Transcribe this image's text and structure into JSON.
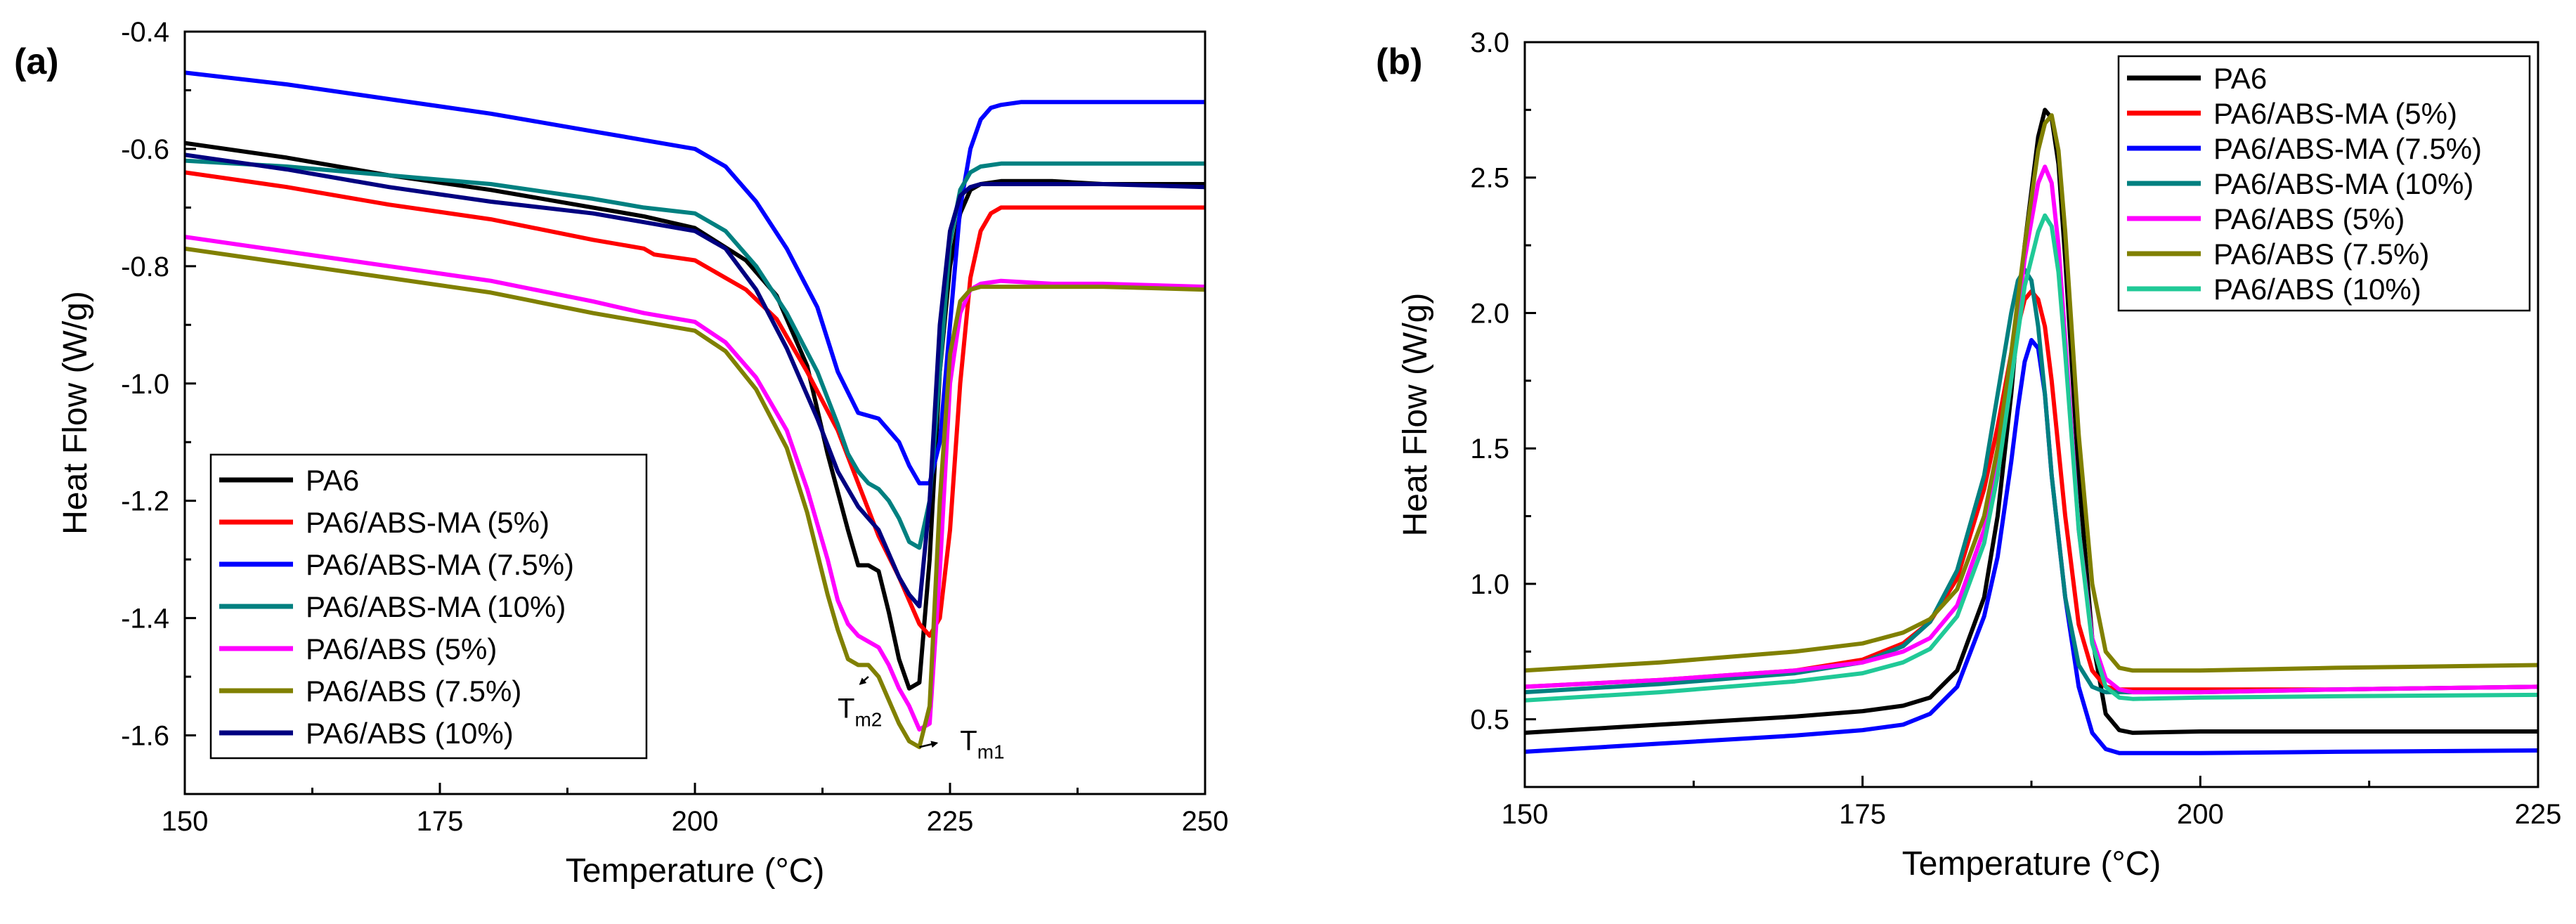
{
  "chart_data": [
    {
      "type": "line",
      "panel_label": "(a)",
      "title": "",
      "xlabel": "Temperature (°C)",
      "ylabel": "Heat Flow (W/g)",
      "xlim": [
        150,
        250
      ],
      "ylim": [
        -1.7,
        -0.4
      ],
      "xticks": [
        150,
        175,
        200,
        225,
        250
      ],
      "yticks": [
        -1.6,
        -1.4,
        -1.2,
        -1.0,
        -0.8,
        -0.6,
        -0.4
      ],
      "ytick_labels": [
        "-1.6",
        "-1.4",
        "-1.2",
        "-1.0",
        "-0.8",
        "-0.6",
        "-0.4"
      ],
      "legend_position": "bottom-left",
      "series": [
        {
          "name": "PA6",
          "color": "#000000",
          "x": [
            150,
            160,
            170,
            180,
            190,
            195,
            200,
            205,
            208,
            211,
            213,
            215,
            216,
            217,
            218,
            219,
            220,
            221,
            222,
            223,
            224,
            225,
            226,
            227,
            228,
            230,
            235,
            240,
            250
          ],
          "y": [
            -0.59,
            -0.615,
            -0.645,
            -0.67,
            -0.7,
            -0.715,
            -0.735,
            -0.79,
            -0.85,
            -0.97,
            -1.12,
            -1.25,
            -1.31,
            -1.31,
            -1.32,
            -1.39,
            -1.47,
            -1.52,
            -1.51,
            -1.3,
            -0.98,
            -0.8,
            -0.71,
            -0.67,
            -0.66,
            -0.655,
            -0.655,
            -0.66,
            -0.66
          ]
        },
        {
          "name": "PA6/ABS-MA (5%)",
          "color": "#ff0000",
          "x": [
            150,
            160,
            170,
            180,
            190,
            195,
            196,
            200,
            205,
            208,
            211,
            214,
            216,
            218,
            220,
            221,
            222,
            223,
            224,
            225,
            226,
            227,
            228,
            229,
            230,
            235,
            240,
            250
          ],
          "y": [
            -0.64,
            -0.665,
            -0.695,
            -0.72,
            -0.755,
            -0.77,
            -0.78,
            -0.79,
            -0.84,
            -0.89,
            -0.98,
            -1.08,
            -1.17,
            -1.26,
            -1.33,
            -1.37,
            -1.41,
            -1.43,
            -1.4,
            -1.25,
            -1.0,
            -0.82,
            -0.74,
            -0.71,
            -0.7,
            -0.7,
            -0.7,
            -0.7
          ]
        },
        {
          "name": "PA6/ABS-MA (7.5%)",
          "color": "#0000ff",
          "x": [
            150,
            160,
            170,
            180,
            190,
            195,
            200,
            203,
            206,
            209,
            212,
            214,
            216,
            218,
            219,
            220,
            221,
            222,
            223,
            224,
            225,
            226,
            227,
            228,
            229,
            230,
            232,
            235,
            240,
            250
          ],
          "y": [
            -0.47,
            -0.49,
            -0.515,
            -0.54,
            -0.57,
            -0.585,
            -0.6,
            -0.63,
            -0.69,
            -0.77,
            -0.87,
            -0.98,
            -1.05,
            -1.06,
            -1.08,
            -1.1,
            -1.14,
            -1.17,
            -1.17,
            -1.1,
            -0.9,
            -0.7,
            -0.6,
            -0.55,
            -0.53,
            -0.525,
            -0.52,
            -0.52,
            -0.52,
            -0.52
          ]
        },
        {
          "name": "PA6/ABS-MA (10%)",
          "color": "#008080",
          "x": [
            150,
            160,
            170,
            180,
            190,
            195,
            200,
            203,
            206,
            209,
            212,
            214,
            215,
            216,
            217,
            218,
            219,
            220,
            221,
            222,
            223,
            224,
            225,
            226,
            227,
            228,
            230,
            235,
            240,
            250
          ],
          "y": [
            -0.62,
            -0.63,
            -0.645,
            -0.66,
            -0.685,
            -0.7,
            -0.71,
            -0.74,
            -0.8,
            -0.88,
            -0.98,
            -1.07,
            -1.12,
            -1.15,
            -1.17,
            -1.18,
            -1.2,
            -1.23,
            -1.27,
            -1.28,
            -1.2,
            -0.98,
            -0.76,
            -0.67,
            -0.64,
            -0.63,
            -0.625,
            -0.625,
            -0.625,
            -0.625
          ]
        },
        {
          "name": "PA6/ABS (5%)",
          "color": "#ff00ff",
          "x": [
            150,
            160,
            170,
            180,
            190,
            195,
            200,
            203,
            206,
            209,
            211,
            213,
            214,
            215,
            216,
            217,
            218,
            219,
            220,
            221,
            222,
            223,
            224,
            225,
            226,
            227,
            228,
            230,
            235,
            240,
            250
          ],
          "y": [
            -0.75,
            -0.775,
            -0.8,
            -0.825,
            -0.86,
            -0.88,
            -0.895,
            -0.93,
            -0.99,
            -1.08,
            -1.18,
            -1.3,
            -1.37,
            -1.41,
            -1.43,
            -1.44,
            -1.45,
            -1.48,
            -1.52,
            -1.55,
            -1.59,
            -1.58,
            -1.32,
            -1.0,
            -0.88,
            -0.84,
            -0.83,
            -0.825,
            -0.83,
            -0.83,
            -0.835
          ]
        },
        {
          "name": "PA6/ABS (7.5%)",
          "color": "#808000",
          "x": [
            150,
            160,
            170,
            180,
            190,
            195,
            200,
            203,
            206,
            209,
            211,
            213,
            214,
            215,
            216,
            217,
            218,
            219,
            220,
            221,
            222,
            223,
            224,
            225,
            226,
            227,
            228,
            230,
            235,
            240,
            250
          ],
          "y": [
            -0.77,
            -0.795,
            -0.82,
            -0.845,
            -0.88,
            -0.895,
            -0.91,
            -0.945,
            -1.01,
            -1.11,
            -1.22,
            -1.36,
            -1.42,
            -1.47,
            -1.48,
            -1.48,
            -1.5,
            -1.54,
            -1.58,
            -1.61,
            -1.62,
            -1.55,
            -1.2,
            -0.95,
            -0.86,
            -0.84,
            -0.835,
            -0.835,
            -0.835,
            -0.835,
            -0.84
          ]
        },
        {
          "name": "PA6/ABS (10%)",
          "color": "#000080",
          "x": [
            150,
            160,
            170,
            180,
            190,
            195,
            200,
            203,
            206,
            209,
            212,
            214,
            216,
            217,
            218,
            219,
            220,
            221,
            222,
            223,
            224,
            225,
            226,
            227,
            228,
            230,
            235,
            240,
            250
          ],
          "y": [
            -0.61,
            -0.635,
            -0.665,
            -0.69,
            -0.71,
            -0.725,
            -0.74,
            -0.77,
            -0.84,
            -0.94,
            -1.06,
            -1.15,
            -1.21,
            -1.23,
            -1.25,
            -1.29,
            -1.33,
            -1.36,
            -1.38,
            -1.2,
            -0.9,
            -0.74,
            -0.68,
            -0.665,
            -0.66,
            -0.66,
            -0.66,
            -0.66,
            -0.665
          ]
        }
      ],
      "annotations": [
        {
          "label": "T",
          "subscript": "m2",
          "point": [
            217,
            -1.5
          ],
          "text_pos": [
            215.5,
            -1.57
          ]
        },
        {
          "label": "T",
          "subscript": "m1",
          "point": [
            222,
            -1.62
          ],
          "text_pos": [
            227.5,
            -1.625
          ]
        }
      ]
    },
    {
      "type": "line",
      "panel_label": "(b)",
      "title": "",
      "xlabel": "Temperature (°C)",
      "ylabel": "Heat Flow (W/g)",
      "xlim": [
        150,
        225
      ],
      "ylim": [
        0.25,
        3.0
      ],
      "xticks": [
        150,
        175,
        200,
        225
      ],
      "yticks": [
        0.5,
        1.0,
        1.5,
        2.0,
        2.5,
        3.0
      ],
      "ytick_labels": [
        "0.5",
        "1.0",
        "1.5",
        "2.0",
        "2.5",
        "3.0"
      ],
      "legend_position": "top-right",
      "series": [
        {
          "name": "PA6",
          "color": "#000000",
          "x": [
            150,
            160,
            170,
            175,
            178,
            180,
            182,
            184,
            185,
            186,
            187,
            188,
            188.5,
            189,
            189.5,
            190,
            190.5,
            191,
            192,
            193,
            194,
            195,
            200,
            210,
            225
          ],
          "y": [
            0.45,
            0.48,
            0.51,
            0.53,
            0.55,
            0.58,
            0.68,
            0.95,
            1.25,
            1.7,
            2.25,
            2.65,
            2.75,
            2.72,
            2.55,
            2.2,
            1.8,
            1.4,
            0.8,
            0.52,
            0.46,
            0.45,
            0.455,
            0.455,
            0.455
          ]
        },
        {
          "name": "PA6/ABS-MA (5%)",
          "color": "#ff0000",
          "x": [
            150,
            160,
            170,
            175,
            178,
            180,
            182,
            184,
            185,
            186,
            187,
            187.5,
            188,
            188.5,
            189,
            190,
            191,
            192,
            193,
            194,
            195,
            200,
            210,
            225
          ],
          "y": [
            0.62,
            0.645,
            0.68,
            0.72,
            0.78,
            0.86,
            1.02,
            1.35,
            1.58,
            1.85,
            2.05,
            2.08,
            2.05,
            1.95,
            1.75,
            1.25,
            0.85,
            0.68,
            0.62,
            0.61,
            0.61,
            0.61,
            0.61,
            0.62
          ]
        },
        {
          "name": "PA6/ABS-MA (7.5%)",
          "color": "#0000ff",
          "x": [
            150,
            160,
            170,
            175,
            178,
            180,
            182,
            184,
            185,
            186,
            186.5,
            187,
            187.5,
            188,
            188.5,
            189,
            190,
            191,
            192,
            193,
            194,
            195,
            200,
            210,
            225
          ],
          "y": [
            0.38,
            0.41,
            0.44,
            0.46,
            0.48,
            0.52,
            0.62,
            0.88,
            1.1,
            1.45,
            1.65,
            1.82,
            1.9,
            1.87,
            1.7,
            1.4,
            0.95,
            0.62,
            0.45,
            0.39,
            0.375,
            0.375,
            0.375,
            0.38,
            0.385
          ]
        },
        {
          "name": "PA6/ABS-MA (10%)",
          "color": "#008080",
          "x": [
            150,
            160,
            170,
            175,
            178,
            180,
            182,
            184,
            185,
            186,
            186.5,
            187,
            187.5,
            188,
            188.5,
            189,
            190,
            191,
            192,
            193,
            194,
            195,
            200,
            210,
            225
          ],
          "y": [
            0.6,
            0.63,
            0.67,
            0.71,
            0.77,
            0.86,
            1.05,
            1.4,
            1.7,
            2.0,
            2.12,
            2.16,
            2.12,
            1.95,
            1.7,
            1.4,
            0.95,
            0.7,
            0.62,
            0.6,
            0.6,
            0.6,
            0.6,
            0.61,
            0.62
          ]
        },
        {
          "name": "PA6/ABS (5%)",
          "color": "#ff00ff",
          "x": [
            150,
            160,
            170,
            175,
            178,
            180,
            182,
            184,
            185,
            186,
            187,
            188,
            188.5,
            189,
            189.5,
            190,
            191,
            192,
            193,
            194,
            195,
            200,
            210,
            225
          ],
          "y": [
            0.62,
            0.645,
            0.68,
            0.71,
            0.75,
            0.8,
            0.92,
            1.2,
            1.45,
            1.8,
            2.2,
            2.48,
            2.54,
            2.48,
            2.25,
            1.9,
            1.2,
            0.8,
            0.65,
            0.61,
            0.6,
            0.6,
            0.61,
            0.62
          ]
        },
        {
          "name": "PA6/ABS (7.5%)",
          "color": "#808000",
          "x": [
            150,
            160,
            170,
            175,
            178,
            180,
            182,
            184,
            185,
            186,
            187,
            188,
            188.5,
            189,
            189.5,
            190,
            191,
            192,
            193,
            194,
            195,
            200,
            210,
            225
          ],
          "y": [
            0.68,
            0.71,
            0.75,
            0.78,
            0.82,
            0.87,
            0.98,
            1.25,
            1.5,
            1.85,
            2.25,
            2.6,
            2.7,
            2.73,
            2.6,
            2.3,
            1.55,
            1.0,
            0.75,
            0.69,
            0.68,
            0.68,
            0.69,
            0.7
          ]
        },
        {
          "name": "PA6/ABS (10%)",
          "color": "#20c997",
          "x": [
            150,
            160,
            170,
            175,
            178,
            180,
            182,
            184,
            185,
            186,
            187,
            188,
            188.5,
            189,
            189.5,
            190,
            191,
            192,
            193,
            194,
            195,
            200,
            210,
            225
          ],
          "y": [
            0.57,
            0.6,
            0.64,
            0.67,
            0.71,
            0.76,
            0.88,
            1.15,
            1.4,
            1.75,
            2.1,
            2.3,
            2.36,
            2.32,
            2.15,
            1.85,
            1.2,
            0.78,
            0.62,
            0.58,
            0.575,
            0.58,
            0.585,
            0.59
          ]
        }
      ]
    }
  ]
}
